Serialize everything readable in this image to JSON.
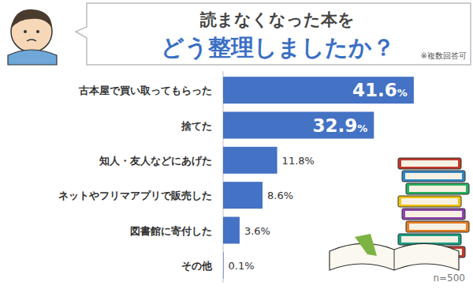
{
  "chart_data": {
    "type": "bar",
    "orientation": "horizontal",
    "title": "読まなくなった本を",
    "subtitle": "どう整理しましたか？",
    "annotations": [
      "※複数回答可",
      "n=500"
    ],
    "categories": [
      "古本屋で買い取ってもらった",
      "捨てた",
      "知人・友人などにあげた",
      "ネットやフリマアプリで販売した",
      "図書館に寄付した",
      "その他"
    ],
    "values": [
      41.6,
      32.9,
      11.8,
      8.6,
      3.6,
      0.1
    ],
    "value_labels": [
      "41.6%",
      "32.9%",
      "11.8%",
      "8.6%",
      "3.6%",
      "0.1%"
    ],
    "color": "#4472c4",
    "xlim": [
      0,
      54
    ],
    "grid": false,
    "data_labels": true,
    "tick_labels": "y"
  }
}
